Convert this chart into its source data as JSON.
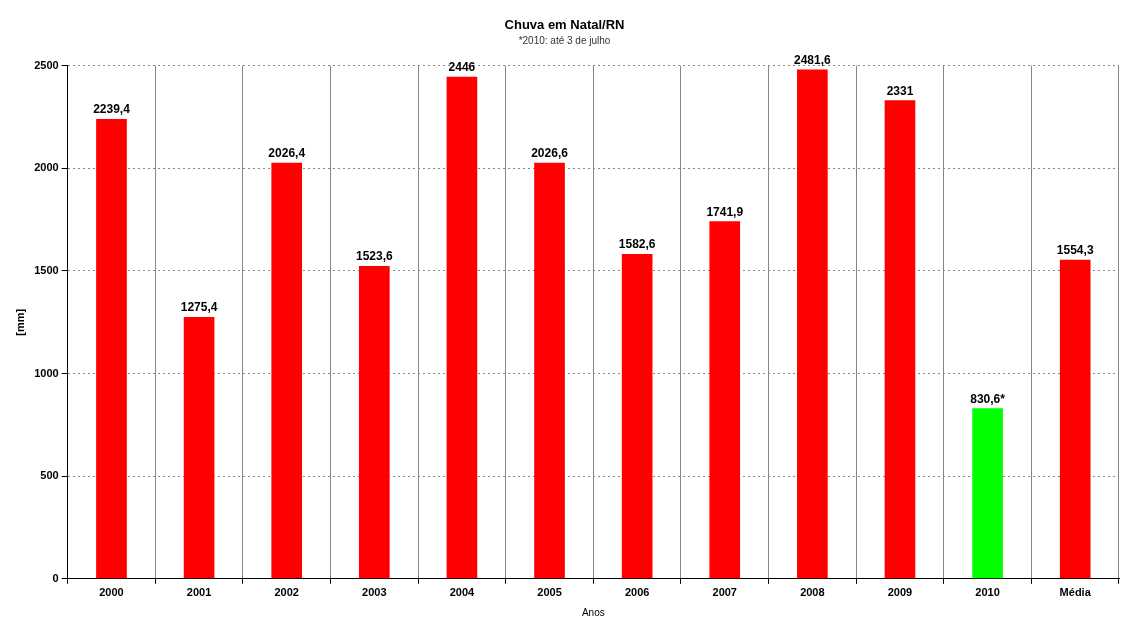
{
  "chart_data": {
    "type": "bar",
    "title": "Chuva em Natal/RN",
    "subtitle": "*2010: até 3 de julho",
    "xlabel": "Anos",
    "ylabel": "[mm]",
    "categories": [
      "2000",
      "2001",
      "2002",
      "2003",
      "2004",
      "2005",
      "2006",
      "2007",
      "2008",
      "2009",
      "2010",
      "Média"
    ],
    "values": [
      2239.4,
      1275.4,
      2026.4,
      1523.6,
      2446,
      2026.6,
      1582.6,
      1741.9,
      2481.6,
      2331,
      830.6,
      1554.3
    ],
    "colors": [
      "#ff0000",
      "#ff0000",
      "#ff0000",
      "#ff0000",
      "#ff0000",
      "#ff0000",
      "#ff0000",
      "#ff0000",
      "#ff0000",
      "#ff0000",
      "#00ff00",
      "#ff0000"
    ],
    "value_labels": [
      "2239,4",
      "1275,4",
      "2026,4",
      "1523,6",
      "2446",
      "2026,6",
      "1582,6",
      "1741,9",
      "2481,6",
      "2331",
      "830,6*",
      "1554,3"
    ],
    "ylim": [
      0,
      2500
    ],
    "yticks": [
      0,
      500,
      1000,
      1500,
      2000,
      2500
    ],
    "grid": true,
    "legend": false
  }
}
